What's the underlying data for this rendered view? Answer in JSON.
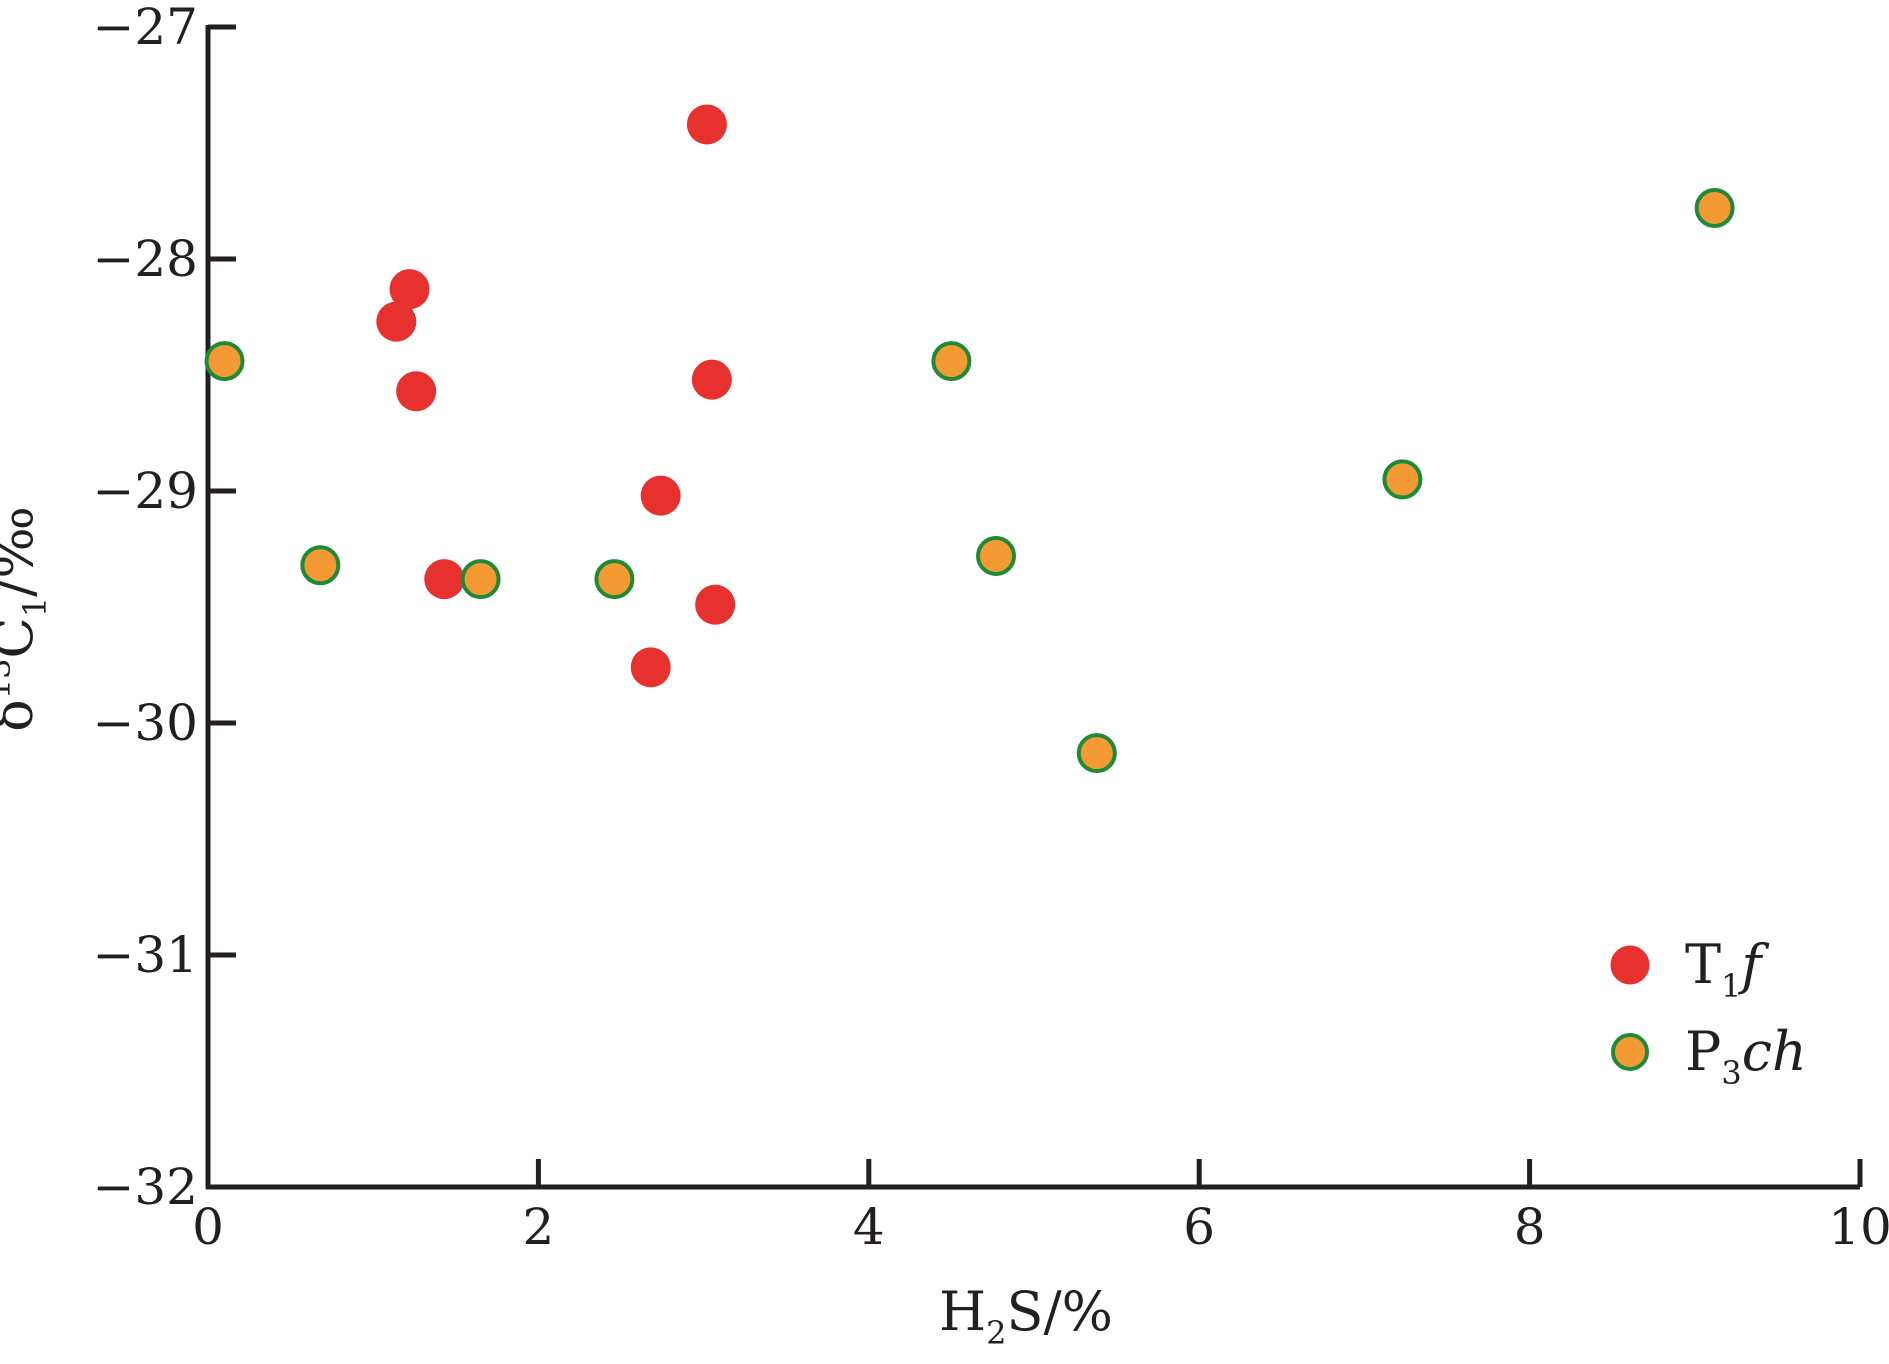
{
  "chart_data": {
    "type": "scatter",
    "xlabel": {
      "base": "H",
      "sub": "2",
      "rest": "S/%"
    },
    "ylabel": {
      "delta": "δ",
      "sup": "13",
      "base": "C",
      "sub": "1",
      "rest": "/‰"
    },
    "xlim": [
      0,
      10
    ],
    "ylim": [
      -32,
      -27
    ],
    "xticks": [
      0,
      2,
      4,
      6,
      8,
      10
    ],
    "xtick_labels": [
      "0",
      "2",
      "4",
      "6",
      "8",
      "10"
    ],
    "yticks": [
      -27,
      -28,
      -29,
      -30,
      -31,
      -32
    ],
    "ytick_labels": [
      "−27",
      "−28",
      "−29",
      "−30",
      "−31",
      "−32"
    ],
    "grid": false,
    "legend_position": "bottom-right",
    "series": [
      {
        "name": "T1f",
        "label": {
          "base": "T",
          "sub": "1",
          "ital": "f"
        },
        "fill": "#e7312e",
        "stroke": "#e7312e",
        "points": [
          {
            "x": 3.02,
            "y": -27.42
          },
          {
            "x": 1.22,
            "y": -28.13
          },
          {
            "x": 1.14,
            "y": -28.27
          },
          {
            "x": 1.26,
            "y": -28.57
          },
          {
            "x": 3.05,
            "y": -28.52
          },
          {
            "x": 2.74,
            "y": -29.02
          },
          {
            "x": 1.43,
            "y": -29.38
          },
          {
            "x": 3.07,
            "y": -29.49
          },
          {
            "x": 2.68,
            "y": -29.76
          }
        ]
      },
      {
        "name": "P3ch",
        "label": {
          "base": "P",
          "sub": "3",
          "ital": "ch"
        },
        "fill": "#f39a35",
        "stroke": "#1e8a36",
        "points": [
          {
            "x": 0.1,
            "y": -28.44
          },
          {
            "x": 0.68,
            "y": -29.32
          },
          {
            "x": 1.65,
            "y": -29.38
          },
          {
            "x": 2.46,
            "y": -29.38
          },
          {
            "x": 4.5,
            "y": -28.44
          },
          {
            "x": 4.77,
            "y": -29.28
          },
          {
            "x": 5.38,
            "y": -30.13
          },
          {
            "x": 7.23,
            "y": -28.95
          },
          {
            "x": 9.12,
            "y": -27.78
          }
        ]
      }
    ]
  }
}
